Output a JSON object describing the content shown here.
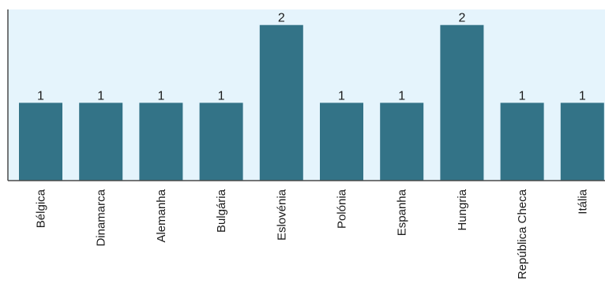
{
  "chart_data": {
    "type": "bar",
    "categories": [
      "Bélgica",
      "Dinamarca",
      "Alemanha",
      "Bulgária",
      "Eslovénia",
      "Polónia",
      "Espanha",
      "Hungria",
      "República Checa",
      "Itália"
    ],
    "values": [
      1,
      1,
      1,
      1,
      2,
      1,
      1,
      2,
      1,
      1
    ],
    "ylim": [
      0,
      2.2
    ],
    "grid": false,
    "title": "",
    "xlabel": "",
    "ylabel": "",
    "colors": {
      "bar": "#337387",
      "plot_background": "#e5f4fc",
      "axis": "#4a4a4a"
    }
  }
}
